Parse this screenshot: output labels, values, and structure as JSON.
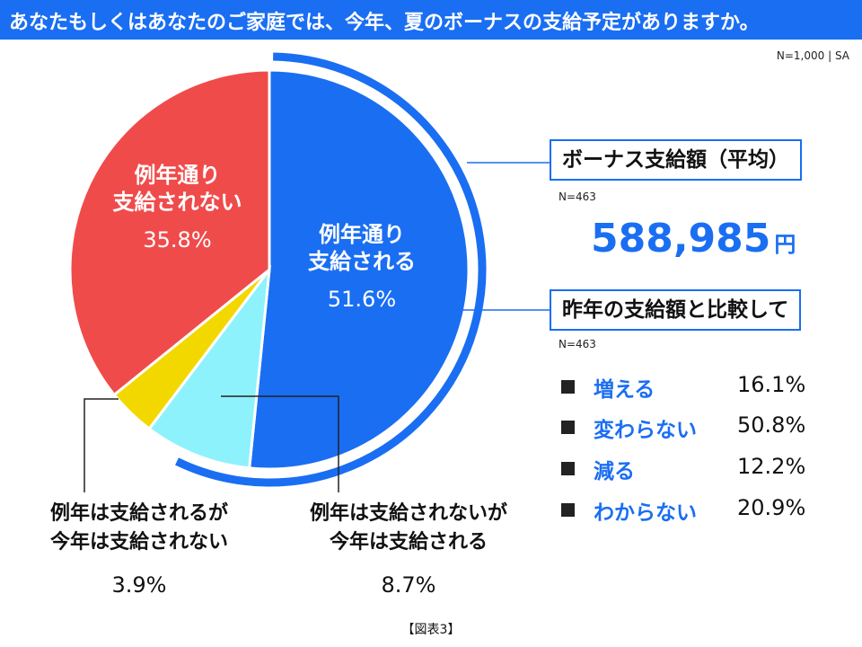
{
  "title": "あなたもしくはあなたのご家庭では、今年、夏のボーナスの支給予定がありますか。",
  "sample_note": "N=1,000 | SA",
  "chart_data": {
    "type": "pie",
    "slices": [
      {
        "label_line1": "例年通り",
        "label_line2": "支給される",
        "value": 51.6,
        "value_label": "51.6%",
        "color": "#1a6ef2"
      },
      {
        "label_line1": "例年は支給されないが",
        "label_line2": "今年は支給される",
        "value": 8.7,
        "value_label": "8.7%",
        "color": "#8ef2fd"
      },
      {
        "label_line1": "例年は支給されるが",
        "label_line2": "今年は支給されない",
        "value": 3.9,
        "value_label": "3.9%",
        "color": "#f3d800"
      },
      {
        "label_line1": "例年通り",
        "label_line2": "支給されない",
        "value": 35.8,
        "value_label": "35.8%",
        "color": "#f04b4b"
      }
    ],
    "highlight_ring_color": "#1a6ef2"
  },
  "bonus_box": {
    "title": "ボーナス支給額（平均）",
    "n_note": "N=463",
    "amount": "588,985",
    "unit": "円"
  },
  "compare_box": {
    "title": "昨年の支給額と比較して",
    "n_note": "N=463",
    "rows": [
      {
        "label": "増える",
        "value": "16.1%"
      },
      {
        "label": "変わらない",
        "value": "50.8%"
      },
      {
        "label": "減る",
        "value": "12.2%"
      },
      {
        "label": "わからない",
        "value": "20.9%"
      }
    ]
  },
  "caption": "【図表3】"
}
